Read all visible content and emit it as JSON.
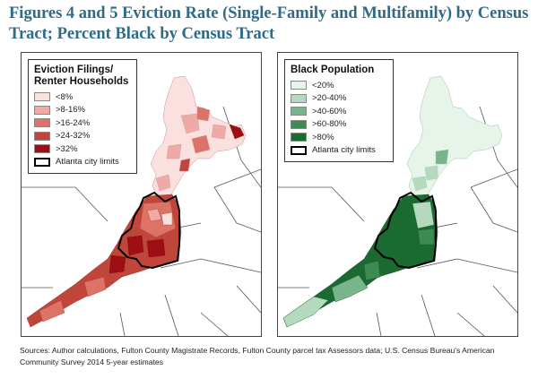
{
  "title": "Figures 4 and 5 Eviction Rate (Single-Family and Multifamily) by Census Tract; Percent Black by Census Tract",
  "maps": [
    {
      "legend_title": "Eviction Filings/ Renter Households",
      "classes": [
        {
          "label": "<8%",
          "color": "#fbe0e0"
        },
        {
          "label": ">8-16%",
          "color": "#f0aaa5"
        },
        {
          "label": ">16-24%",
          "color": "#dd7367"
        },
        {
          "label": ">24-32%",
          "color": "#c0463c"
        },
        {
          "label": ">32%",
          "color": "#9e0f14"
        }
      ],
      "boundary_label": "Atlanta city limits"
    },
    {
      "legend_title": "Black Population",
      "classes": [
        {
          "label": "<20%",
          "color": "#e6f4ea"
        },
        {
          "label": ">20-40%",
          "color": "#b4d9bd"
        },
        {
          "label": ">40-60%",
          "color": "#79b48a"
        },
        {
          "label": ">60-80%",
          "color": "#3f8a51"
        },
        {
          "label": ">80%",
          "color": "#1b6a32"
        }
      ],
      "boundary_label": "Atlanta city limits"
    }
  ],
  "source": "Sources: Author calculations, Fulton County Magistrate Records, Fulton County parcel tax Assessors data; U.S. Census Bureau's American Community Survey 2014 5-year estimates"
}
